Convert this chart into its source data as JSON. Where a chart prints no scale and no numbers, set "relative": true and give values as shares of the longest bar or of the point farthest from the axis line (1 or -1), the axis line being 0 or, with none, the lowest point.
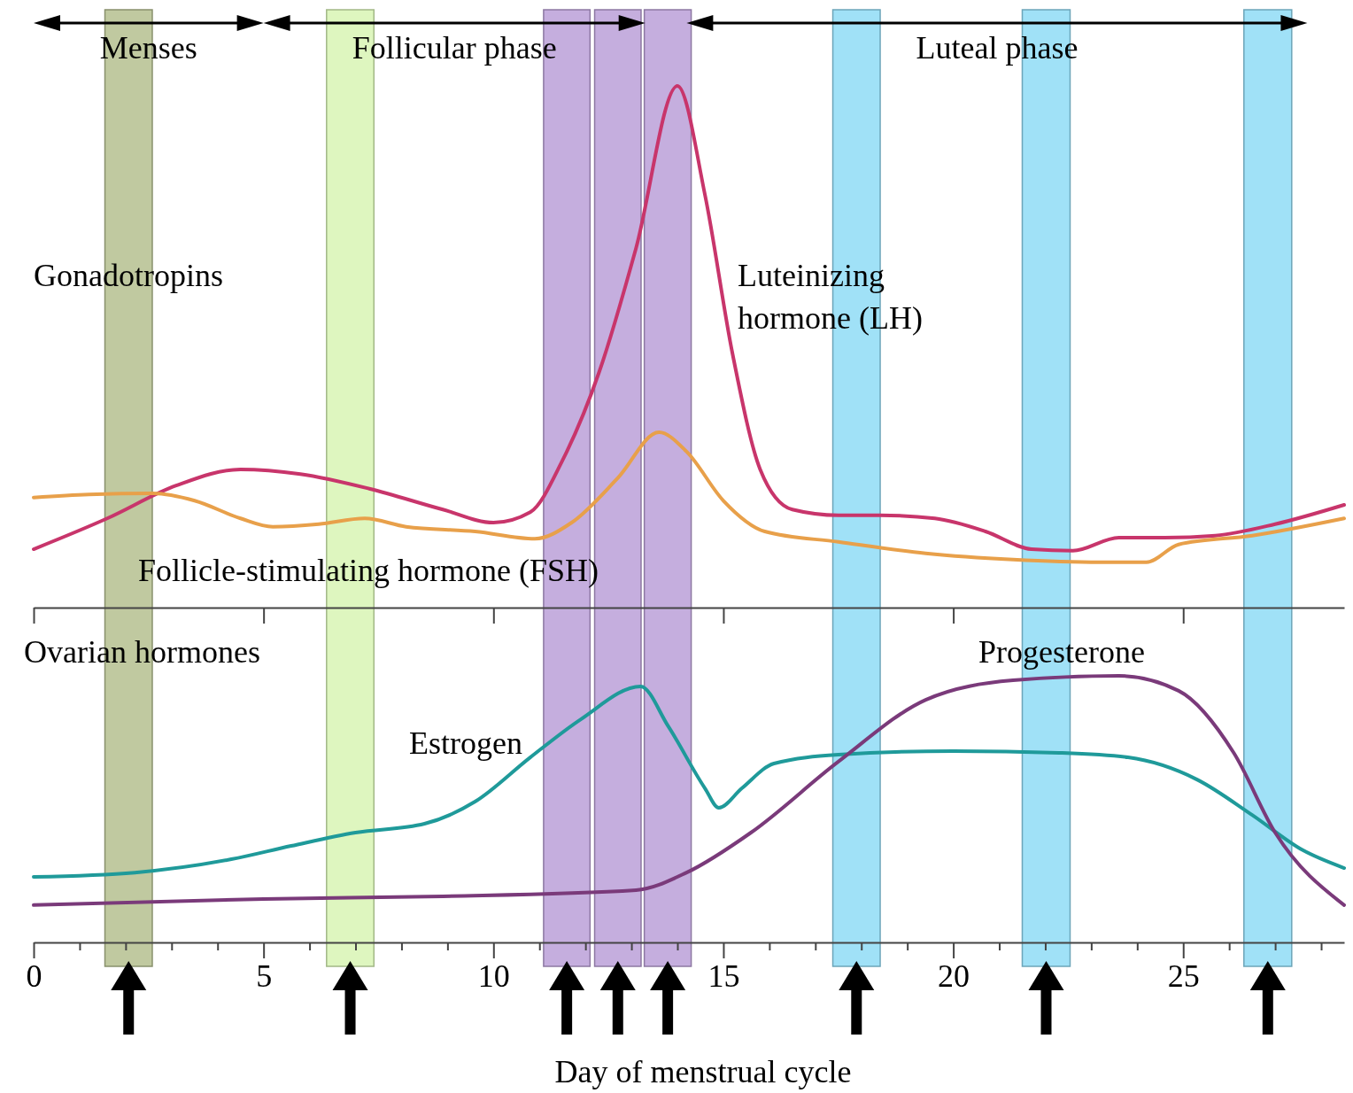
{
  "chart_data": [
    {
      "type": "line",
      "title": "Gonadotropins",
      "relative": true,
      "xlim": [
        0,
        28.5
      ],
      "xticks": [
        0,
        5,
        10,
        15,
        20,
        25
      ],
      "tick_labels": false,
      "series": [
        {
          "name": "Luteinizing hormone (LH)",
          "color": "#c8356b",
          "x": [
            0,
            1.6,
            3.1,
            4.5,
            5.8,
            7.3,
            8.9,
            10.0,
            10.8,
            11.5,
            12.3,
            13.1,
            14.0,
            14.6,
            15.2,
            15.8,
            16.5,
            17.5,
            18.4,
            19.6,
            20.7,
            21.7,
            22.6,
            23.6,
            24.6,
            25.7,
            27.0,
            28.5
          ],
          "values": [
            0.112,
            0.171,
            0.234,
            0.265,
            0.256,
            0.228,
            0.188,
            0.163,
            0.183,
            0.282,
            0.452,
            0.689,
            1.0,
            0.791,
            0.486,
            0.265,
            0.188,
            0.177,
            0.177,
            0.171,
            0.146,
            0.112,
            0.109,
            0.134,
            0.134,
            0.138,
            0.16,
            0.197
          ]
        },
        {
          "name": "Follicle-stimulating hormone (FSH)",
          "color": "#e8a04a",
          "x": [
            0,
            1.2,
            2.6,
            3.5,
            4.5,
            5.2,
            6.2,
            7.2,
            8.1,
            9.6,
            10.9,
            11.7,
            12.7,
            13.6,
            14.2,
            15.0,
            15.9,
            17.5,
            19.4,
            21.3,
            23.2,
            24.2,
            24.9,
            26.5,
            28.5
          ],
          "values": [
            0.211,
            0.217,
            0.219,
            0.205,
            0.171,
            0.155,
            0.16,
            0.171,
            0.155,
            0.146,
            0.132,
            0.163,
            0.248,
            0.336,
            0.299,
            0.205,
            0.146,
            0.126,
            0.104,
            0.092,
            0.087,
            0.087,
            0.121,
            0.138,
            0.171
          ]
        }
      ],
      "annotations": [
        "Menses",
        "Follicular phase",
        "Luteal phase"
      ]
    },
    {
      "type": "line",
      "title": "Ovarian hormones",
      "xlabel": "Day of menstrual cycle",
      "relative": true,
      "xlim": [
        0,
        28.5
      ],
      "tick_labels": "x",
      "xticks": [
        0,
        {
          "value": 1,
          "label": null
        },
        {
          "value": 2,
          "label": null
        },
        {
          "value": 3,
          "label": null
        },
        {
          "value": 4,
          "label": null
        },
        5,
        {
          "value": 6,
          "label": null
        },
        {
          "value": 7,
          "label": null
        },
        {
          "value": 8,
          "label": null
        },
        {
          "value": 9,
          "label": null
        },
        10,
        {
          "value": 11,
          "label": null
        },
        {
          "value": 12,
          "label": null
        },
        {
          "value": 13,
          "label": null
        },
        {
          "value": 14,
          "label": null
        },
        15,
        {
          "value": 16,
          "label": null
        },
        {
          "value": 17,
          "label": null
        },
        {
          "value": 18,
          "label": null
        },
        {
          "value": 19,
          "label": null
        },
        20,
        {
          "value": 21,
          "label": null
        },
        {
          "value": 22,
          "label": null
        },
        {
          "value": 23,
          "label": null
        },
        {
          "value": 24,
          "label": null
        },
        25,
        {
          "value": 26,
          "label": null
        },
        {
          "value": 27,
          "label": null
        },
        {
          "value": 28,
          "label": null
        }
      ],
      "series": [
        {
          "name": "Estrogen",
          "color": "#1f9a9a",
          "x": [
            0,
            2.2,
            4.3,
            5.6,
            7.0,
            8.5,
            9.6,
            10.8,
            11.9,
            13.2,
            13.8,
            14.6,
            14.9,
            15.4,
            16.1,
            17.5,
            20.0,
            22.3,
            23.8,
            25.3,
            26.5,
            27.6,
            28.5
          ],
          "values": [
            0.246,
            0.262,
            0.312,
            0.362,
            0.412,
            0.445,
            0.528,
            0.694,
            0.837,
            0.96,
            0.811,
            0.578,
            0.505,
            0.578,
            0.671,
            0.704,
            0.718,
            0.711,
            0.694,
            0.611,
            0.478,
            0.346,
            0.279
          ]
        },
        {
          "name": "Progesterone",
          "color": "#7a3a7a",
          "x": [
            0,
            5.0,
            8.9,
            13.1,
            14.2,
            15.6,
            17.5,
            19.4,
            21.3,
            23.6,
            24.9,
            26.1,
            27.0,
            28.5
          ],
          "values": [
            0.14,
            0.163,
            0.173,
            0.196,
            0.262,
            0.412,
            0.678,
            0.91,
            0.983,
            1.0,
            0.944,
            0.711,
            0.412,
            0.14
          ]
        }
      ],
      "bands": [
        {
          "axis": "x",
          "from": 1.55,
          "to": 2.58,
          "color": "#b5bf8f"
        },
        {
          "axis": "x",
          "from": 6.37,
          "to": 7.4,
          "color": "#d8f5b4"
        },
        {
          "axis": "x",
          "from": 11.09,
          "to": 12.1,
          "color": "#bba0d8"
        },
        {
          "axis": "x",
          "from": 12.2,
          "to": 13.21,
          "color": "#bba0d8"
        },
        {
          "axis": "x",
          "from": 13.28,
          "to": 14.3,
          "color": "#bba0d8"
        },
        {
          "axis": "x",
          "from": 17.38,
          "to": 18.41,
          "color": "#8fdcf6"
        },
        {
          "axis": "x",
          "from": 21.5,
          "to": 22.54,
          "color": "#8fdcf6"
        },
        {
          "axis": "x",
          "from": 26.32,
          "to": 27.36,
          "color": "#8fdcf6"
        }
      ]
    }
  ]
}
